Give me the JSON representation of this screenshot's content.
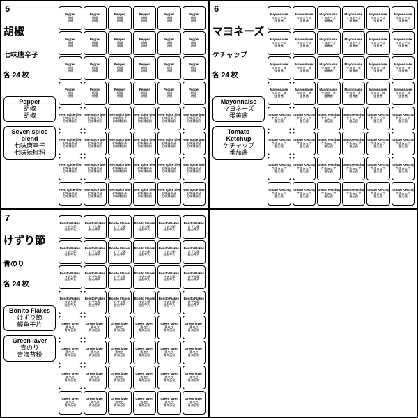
{
  "layout": {
    "panel_rows": 2,
    "panel_cols": 2,
    "label_grid_cols": 6,
    "label_grid_rows": 8,
    "rows_per_item": 4,
    "labels_per_item": 24
  },
  "colors": {
    "background": "#ffffff",
    "border": "#000000",
    "text": "#000000"
  },
  "panels": [
    {
      "number": "5",
      "heading_main": "胡椒",
      "heading_line2": "七味唐辛子",
      "heading_line3": "各 24 枚",
      "items": [
        {
          "en": "Pepper",
          "jp": "胡椒",
          "cn": "胡椒"
        },
        {
          "en": "Seven spice blend",
          "jp": "七味唐辛子",
          "cn": "七味辣椒粉"
        }
      ]
    },
    {
      "number": "6",
      "heading_main": "マヨネーズ",
      "heading_line2": "ケチャップ",
      "heading_line3": "各 24 枚",
      "items": [
        {
          "en": "Mayonnaise",
          "jp": "マヨネーズ",
          "cn": "蛋黄酱"
        },
        {
          "en": "Tomato Ketchup",
          "jp": "ケチャップ",
          "cn": "番茄酱"
        }
      ]
    },
    {
      "number": "7",
      "heading_main": "けずり節",
      "heading_line2": "青のり",
      "heading_line3": "各 24 枚",
      "items": [
        {
          "en": "Bonito Flakes",
          "jp": "けずり節",
          "cn": "鲣鱼干片"
        },
        {
          "en": "Green laver",
          "jp": "青のり",
          "cn": "青海苔粉"
        }
      ]
    },
    null
  ]
}
